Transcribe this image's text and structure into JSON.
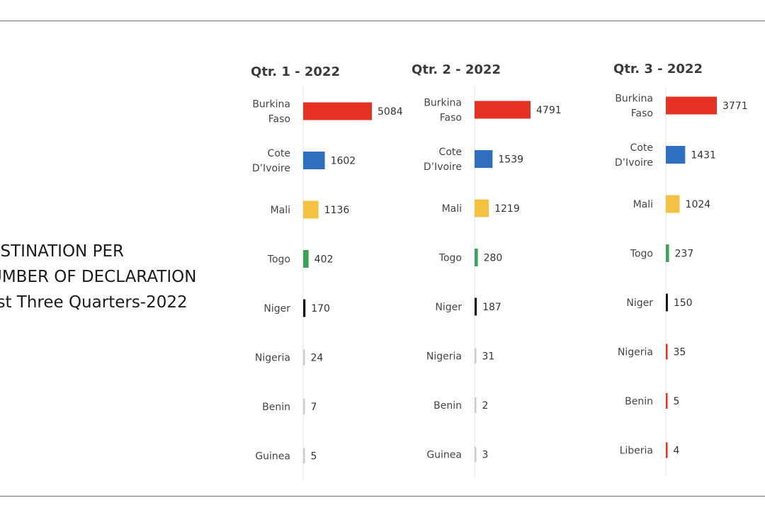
{
  "side_title": {
    "line1": "ESTINATION PER",
    "line2": "UMBER OF DECLARATION",
    "line3": "rst Three Quarters-2022"
  },
  "chart_data": [
    {
      "type": "bar",
      "orientation": "horizontal",
      "title": "Qtr. 1 - 2022",
      "categories": [
        [
          "Burkina",
          "Faso"
        ],
        [
          "Cote",
          "D’Ivoire"
        ],
        [
          "Mali"
        ],
        [
          "Togo"
        ],
        [
          "Niger"
        ],
        [
          "Nigeria"
        ],
        [
          "Benin"
        ],
        [
          "Guinea"
        ]
      ],
      "values": [
        5084,
        1602,
        1136,
        402,
        170,
        24,
        7,
        5
      ],
      "colors": [
        "#e53224",
        "#2f6fbf",
        "#f2c240",
        "#3aa35a",
        "#111111",
        "#cccccc",
        "#cccccc",
        "#cccccc"
      ],
      "xlim": [
        0,
        5084
      ]
    },
    {
      "type": "bar",
      "orientation": "horizontal",
      "title": "Qtr. 2 - 2022",
      "categories": [
        [
          "Burkina",
          "Faso"
        ],
        [
          "Cote",
          "D’Ivoire"
        ],
        [
          "Mali"
        ],
        [
          "Togo"
        ],
        [
          "Niger"
        ],
        [
          "Nigeria"
        ],
        [
          "Benin"
        ],
        [
          "Guinea"
        ]
      ],
      "values": [
        4791,
        1539,
        1219,
        280,
        187,
        31,
        2,
        3
      ],
      "colors": [
        "#e53224",
        "#2f6fbf",
        "#f2c240",
        "#3aa35a",
        "#111111",
        "#cccccc",
        "#cccccc",
        "#cccccc"
      ],
      "xlim": [
        0,
        4791
      ]
    },
    {
      "type": "bar",
      "orientation": "horizontal",
      "title": "Qtr. 3 - 2022",
      "categories": [
        [
          "Burkina",
          "Faso"
        ],
        [
          "Cote",
          "D’Ivoire"
        ],
        [
          "Mali"
        ],
        [
          "Togo"
        ],
        [
          "Niger"
        ],
        [
          "Nigeria"
        ],
        [
          "Benin"
        ],
        [
          "Liberia"
        ]
      ],
      "values": [
        3771,
        1431,
        1024,
        237,
        150,
        35,
        5,
        4
      ],
      "colors": [
        "#e53224",
        "#2f6fbf",
        "#f2c240",
        "#3aa35a",
        "#111111",
        "#e53224",
        "#e53224",
        "#e53224"
      ],
      "xlim": [
        0,
        3771
      ]
    }
  ]
}
